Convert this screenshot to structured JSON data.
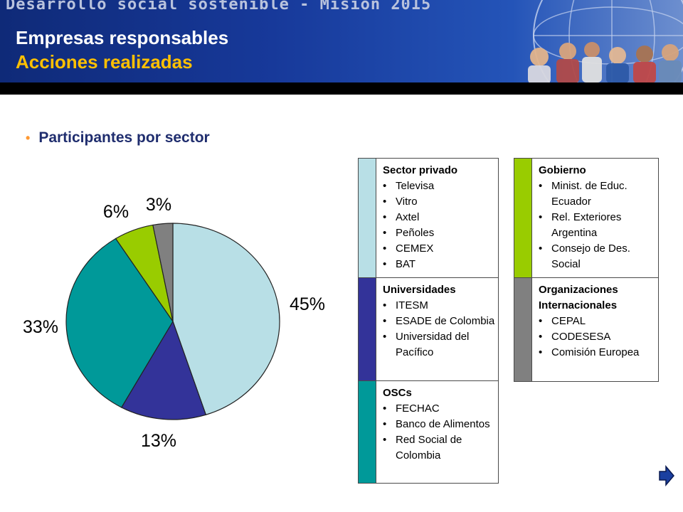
{
  "header": {
    "banner": "Desarrollo social sostenible - Misión 2015",
    "title": "Empresas responsables",
    "subtitle": "Acciones realizadas"
  },
  "section": {
    "title": "Participantes por sector"
  },
  "colors": {
    "sector_privado": "#b8dfe6",
    "universidades": "#333399",
    "oscs": "#009999",
    "gobierno": "#99cc00",
    "organizaciones": "#808080"
  },
  "chart_data": {
    "type": "pie",
    "title": "",
    "slices": [
      {
        "label": "45%",
        "value": 45,
        "color": "#b8dfe6"
      },
      {
        "label": "13%",
        "value": 13,
        "color": "#333399"
      },
      {
        "label": "33%",
        "value": 33,
        "color": "#009999"
      },
      {
        "label": "6%",
        "value": 6,
        "color": "#99cc00"
      },
      {
        "label": "3%",
        "value": 3,
        "color": "#808080"
      }
    ]
  },
  "legend": {
    "col1": [
      {
        "heading": "Sector privado",
        "items": [
          "Televisa",
          "Vitro",
          "Axtel",
          "Peñoles",
          "CEMEX",
          "BAT"
        ]
      },
      {
        "heading": "Universidades",
        "items": [
          "ITESM",
          "ESADE de Colombia",
          "Universidad del Pacífico"
        ]
      },
      {
        "heading": "OSCs",
        "items": [
          "FECHAC",
          "Banco de Alimentos",
          "Red Social de Colombia"
        ]
      }
    ],
    "col2": [
      {
        "heading": "Gobierno",
        "items": [
          "Minist. de Educ. Ecuador",
          "Rel. Exteriores Argentina",
          "Consejo de Des. Social"
        ]
      },
      {
        "heading": "Organizaciones Internacionales",
        "items": [
          "CEPAL",
          "CODESESA",
          "Comisión Europea"
        ]
      }
    ]
  }
}
